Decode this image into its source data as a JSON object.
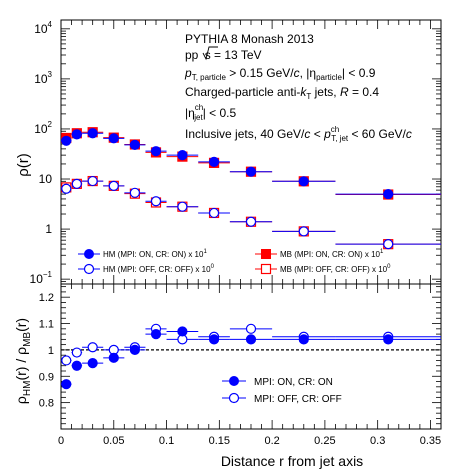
{
  "chart_data": [
    {
      "type": "scatter",
      "panel": "top",
      "ylabel": "ρ(r)",
      "yscale": "log",
      "ylim": [
        0.08,
        15000
      ],
      "xlim": [
        0,
        0.36
      ],
      "yticks": [
        0.1,
        1,
        10,
        100,
        1000,
        10000
      ],
      "ytick_labels": [
        {
          "base": "10",
          "exp": "−1"
        },
        {
          "base": "1",
          "exp": ""
        },
        {
          "base": "10",
          "exp": ""
        },
        {
          "base": "10",
          "exp": "2"
        },
        {
          "base": "10",
          "exp": "3"
        },
        {
          "base": "10",
          "exp": "4"
        }
      ],
      "annotations": [
        "PYTHIA 8 Monash 2013",
        "pp √s = 13 TeV",
        "p_T, particle > 0.15 GeV/c, |η_particle| < 0.9",
        "Charged-particle anti-k_T jets, R = 0.4",
        "|η_jet^ch| < 0.5",
        "Inclusive jets, 40 GeV/c < p_T, jet^ch < 60 GeV/c"
      ],
      "ann_text": {
        "line1": "PYTHIA 8 Monash 2013",
        "line2a": "pp ",
        "line2b": "s",
        "line2c": " = 13 TeV",
        "line3a": "p",
        "line3b": "T, particle",
        "line3c": " > 0.15 GeV/",
        "line3d": "c",
        "line3e": ", |η",
        "line3f": "particle",
        "line3g": "| < 0.9",
        "line4a": "Charged-particle anti-",
        "line4b": "k",
        "line4c": "T",
        "line4d": " jets, ",
        "line4e": "R",
        "line4f": " = 0.4",
        "line5a": "|η",
        "line5b": "ch",
        "line5c": "jet",
        "line5d": "| < 0.5",
        "line6a": "Inclusive jets, 40 GeV/",
        "line6b": "c",
        "line6c": " < ",
        "line6d": "p",
        "line6e": "ch",
        "line6f": "T, jet",
        "line6g": " < 60 GeV/",
        "line6h": "c"
      },
      "legend": [
        {
          "label": "HM (MPI: ON, CR: ON) x 10",
          "exp": "1",
          "color": "#0000ff",
          "marker": "circle-filled"
        },
        {
          "label": "HM (MPI: OFF, CR: OFF) x 10",
          "exp": "0",
          "color": "#0000ff",
          "marker": "circle-open"
        },
        {
          "label": "MB (MPI: ON, CR: ON) x 10",
          "exp": "1",
          "color": "#ff0000",
          "marker": "square-filled"
        },
        {
          "label": "MB (MPI: OFF, CR: OFF) x 10",
          "exp": "0",
          "color": "#ff0000",
          "marker": "square-open"
        }
      ],
      "series": [
        {
          "name": "HM (MPI: ON, CR: ON) x 10^1",
          "color": "#0000ff",
          "marker": "circle-filled",
          "x": [
            0.005,
            0.015,
            0.03,
            0.05,
            0.07,
            0.09,
            0.115,
            0.145,
            0.18,
            0.23,
            0.31
          ],
          "xerr": [
            0.005,
            0.005,
            0.01,
            0.01,
            0.01,
            0.01,
            0.015,
            0.015,
            0.02,
            0.03,
            0.05
          ],
          "y": [
            58,
            78,
            82,
            65,
            48,
            36,
            30,
            22,
            14,
            9,
            5
          ]
        },
        {
          "name": "HM (MPI: OFF, CR: OFF) x 10^0",
          "color": "#0000ff",
          "marker": "circle-open",
          "x": [
            0.005,
            0.015,
            0.03,
            0.05,
            0.07,
            0.09,
            0.115,
            0.145,
            0.18,
            0.23,
            0.31
          ],
          "xerr": [
            0.005,
            0.005,
            0.01,
            0.01,
            0.01,
            0.01,
            0.015,
            0.015,
            0.02,
            0.03,
            0.05
          ],
          "y": [
            6.4,
            8.0,
            9.1,
            7.3,
            5.3,
            3.6,
            2.8,
            2.1,
            1.4,
            0.9,
            0.5
          ]
        },
        {
          "name": "MB (MPI: ON, CR: ON) x 10^1",
          "color": "#ff0000",
          "marker": "square-filled",
          "x": [
            0.005,
            0.015,
            0.03,
            0.05,
            0.07,
            0.09,
            0.115,
            0.145,
            0.18,
            0.23,
            0.31
          ],
          "xerr": [
            0.005,
            0.005,
            0.01,
            0.01,
            0.01,
            0.01,
            0.015,
            0.015,
            0.02,
            0.03,
            0.05
          ],
          "y": [
            66,
            82,
            86,
            67,
            49,
            34,
            28,
            21,
            14,
            9,
            4.9
          ]
        },
        {
          "name": "MB (MPI: OFF, CR: OFF) x 10^0",
          "color": "#ff0000",
          "marker": "square-open",
          "x": [
            0.005,
            0.015,
            0.03,
            0.05,
            0.07,
            0.09,
            0.115,
            0.145,
            0.18,
            0.23,
            0.31
          ],
          "xerr": [
            0.005,
            0.005,
            0.01,
            0.01,
            0.01,
            0.01,
            0.015,
            0.015,
            0.02,
            0.03,
            0.05
          ],
          "y": [
            6.8,
            8.0,
            9.1,
            7.3,
            5.1,
            3.4,
            2.8,
            2.1,
            1.4,
            0.9,
            0.5
          ]
        }
      ]
    },
    {
      "type": "scatter",
      "panel": "bottom",
      "xlabel": "Distance r from jet axis",
      "ylabel": "ρ_HM(r) / ρ_MB(r)",
      "ylabel_parts": {
        "a": "ρ",
        "b": "HM",
        "c": "(r) / ρ",
        "d": "MB",
        "e": "(r)"
      },
      "xlim": [
        0,
        0.36
      ],
      "ylim": [
        0.7,
        1.25
      ],
      "xticks": [
        0,
        0.05,
        0.1,
        0.15,
        0.2,
        0.25,
        0.3,
        0.35
      ],
      "xtick_labels": [
        "0",
        "0.05",
        "0.1",
        "0.15",
        "0.2",
        "0.25",
        "0.3",
        "0.35"
      ],
      "yticks": [
        0.8,
        0.9,
        1.0,
        1.1,
        1.2
      ],
      "ytick_labels": [
        "0.8",
        "0.9",
        "1",
        "1.1",
        "1.2"
      ],
      "reference_line": 1.0,
      "legend": [
        {
          "label": "MPI: ON, CR: ON",
          "color": "#0000ff",
          "marker": "circle-filled"
        },
        {
          "label": "MPI: OFF, CR: OFF",
          "color": "#0000ff",
          "marker": "circle-open"
        }
      ],
      "series": [
        {
          "name": "MPI: ON, CR: ON",
          "color": "#0000ff",
          "marker": "circle-filled",
          "x": [
            0.005,
            0.015,
            0.03,
            0.05,
            0.07,
            0.09,
            0.115,
            0.145,
            0.18,
            0.23,
            0.31
          ],
          "xerr": [
            0.005,
            0.005,
            0.01,
            0.01,
            0.01,
            0.01,
            0.015,
            0.015,
            0.02,
            0.03,
            0.05
          ],
          "y": [
            0.87,
            0.94,
            0.95,
            0.97,
            1.0,
            1.06,
            1.07,
            1.04,
            1.04,
            1.04,
            1.04
          ]
        },
        {
          "name": "MPI: OFF, CR: OFF",
          "color": "#0000ff",
          "marker": "circle-open",
          "x": [
            0.005,
            0.015,
            0.03,
            0.05,
            0.07,
            0.09,
            0.115,
            0.145,
            0.18,
            0.23,
            0.31
          ],
          "xerr": [
            0.005,
            0.005,
            0.01,
            0.01,
            0.01,
            0.01,
            0.015,
            0.015,
            0.02,
            0.03,
            0.05
          ],
          "y": [
            0.96,
            0.99,
            1.01,
            1.0,
            1.01,
            1.08,
            1.04,
            1.05,
            1.08,
            1.05,
            1.05
          ]
        }
      ]
    }
  ]
}
